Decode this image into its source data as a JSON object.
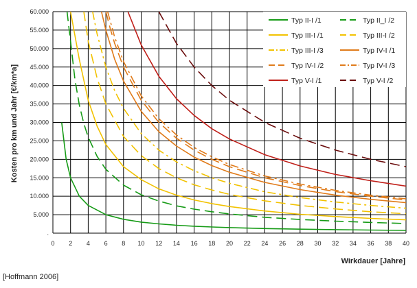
{
  "chart_data": {
    "type": "line",
    "xlabel": "Wirkdauer  [Jahre]",
    "ylabel": "Kosten pro km und Jahr [€/km*a]",
    "xlim": [
      0,
      40
    ],
    "ylim": [
      0,
      60000
    ],
    "x_ticks": [
      "0",
      "2",
      "4",
      "6",
      "8",
      "10",
      "12",
      "14",
      "16",
      "18",
      "20",
      "22",
      "24",
      "26",
      "28",
      "30",
      "32",
      "34",
      "36",
      "38",
      "40"
    ],
    "y_ticks": [
      ".",
      "5.000",
      "10.000",
      "15.000",
      "20.000",
      "25.000",
      "30.000",
      "35.000",
      "40.000",
      "45.000",
      "50.000",
      "55.000",
      "60.000"
    ],
    "grid": true,
    "legend_position": "top-right",
    "series": [
      {
        "name": "Typ II-I /1",
        "color": "#169b16",
        "dash": "solid",
        "x": [
          1,
          1.5,
          2,
          3,
          4,
          6,
          8,
          10,
          12,
          14,
          16,
          18,
          20,
          24,
          28,
          32,
          36,
          40
        ],
        "y": [
          30000,
          20000,
          15000,
          10000,
          7500,
          5000,
          3750,
          3000,
          2500,
          2140,
          1880,
          1670,
          1500,
          1250,
          1070,
          940,
          830,
          750
        ]
      },
      {
        "name": "Typ II_I /2",
        "color": "#169b16",
        "dash": "long",
        "x": [
          1.6,
          2,
          2.5,
          3,
          3.5,
          4,
          5,
          6,
          8,
          10,
          12,
          14,
          16,
          18,
          20,
          24,
          28,
          32,
          36,
          40
        ],
        "y": [
          60000,
          52000,
          41600,
          34700,
          29700,
          26000,
          20800,
          17300,
          13000,
          10400,
          8700,
          7400,
          6500,
          5800,
          5200,
          4300,
          3700,
          3250,
          2900,
          2600
        ]
      },
      {
        "name": "Typ III-I /1",
        "color": "#f2c200",
        "dash": "solid",
        "x": [
          2,
          3,
          4,
          5,
          6,
          8,
          10,
          12,
          14,
          16,
          18,
          20,
          24,
          28,
          32,
          36,
          40
        ],
        "y": [
          60000,
          47000,
          36000,
          29000,
          24000,
          18000,
          14500,
          12000,
          10300,
          9000,
          8000,
          7200,
          6000,
          5100,
          4500,
          4000,
          3600
        ]
      },
      {
        "name": "Typ III-I /2",
        "color": "#f2c200",
        "dash": "long",
        "x": [
          3.5,
          4,
          5,
          6,
          8,
          10,
          12,
          14,
          16,
          18,
          20,
          24,
          28,
          32,
          36,
          40
        ],
        "y": [
          60000,
          52000,
          42000,
          35000,
          26200,
          21000,
          17500,
          15000,
          13100,
          11700,
          10500,
          8750,
          7500,
          6550,
          5800,
          5250
        ]
      },
      {
        "name": "Typ III-I /3",
        "color": "#f2c200",
        "dash": "dashdot",
        "x": [
          4.5,
          5,
          6,
          7,
          8,
          10,
          12,
          14,
          16,
          18,
          20,
          24,
          28,
          32,
          36,
          40
        ],
        "y": [
          60000,
          54000,
          45000,
          38600,
          33800,
          27000,
          22500,
          19300,
          16900,
          15000,
          13500,
          11200,
          9650,
          8450,
          7500,
          6750
        ]
      },
      {
        "name": "Typ IV-I /1",
        "color": "#e07b1a",
        "dash": "solid",
        "x": [
          5.5,
          6,
          7,
          8,
          10,
          12,
          14,
          16,
          18,
          20,
          24,
          28,
          32,
          36,
          40
        ],
        "y": [
          60000,
          55000,
          47100,
          41200,
          33000,
          27500,
          23600,
          20600,
          18300,
          16500,
          13750,
          11800,
          10300,
          9150,
          8250
        ]
      },
      {
        "name": "Typ IV-I /2",
        "color": "#e07b1a",
        "dash": "long",
        "x": [
          6,
          6.5,
          7,
          8,
          10,
          12,
          14,
          16,
          18,
          20,
          24,
          28,
          32,
          36,
          40
        ],
        "y": [
          60000,
          55400,
          51400,
          45000,
          36000,
          30000,
          25700,
          22500,
          20000,
          18000,
          15000,
          12900,
          11250,
          10000,
          9000
        ]
      },
      {
        "name": "Typ IV-I /3",
        "color": "#e07b1a",
        "dash": "dashdot",
        "x": [
          6.2,
          7,
          8,
          10,
          12,
          14,
          16,
          18,
          20,
          24,
          28,
          32,
          36,
          40
        ],
        "y": [
          60000,
          53100,
          46500,
          37200,
          31000,
          26600,
          23200,
          20700,
          18600,
          15500,
          13300,
          11600,
          10300,
          9300
        ]
      },
      {
        "name": "Typ V-I /1",
        "color": "#c0201a",
        "dash": "solid",
        "x": [
          8.5,
          9,
          10,
          12,
          14,
          16,
          18,
          20,
          24,
          28,
          32,
          36,
          40
        ],
        "y": [
          60000,
          57000,
          51000,
          42500,
          36400,
          31900,
          28300,
          25500,
          21250,
          18200,
          15900,
          14200,
          12750
        ]
      },
      {
        "name": "Typ V-I /2",
        "color": "#6b0d0d",
        "dash": "long",
        "x": [
          12,
          14,
          16,
          18,
          20,
          24,
          28,
          32,
          36,
          40
        ],
        "y": [
          60000,
          51400,
          45000,
          40000,
          36000,
          30000,
          25700,
          22500,
          20000,
          18000
        ]
      }
    ]
  },
  "source_note": "[Hoffmann 2006]"
}
